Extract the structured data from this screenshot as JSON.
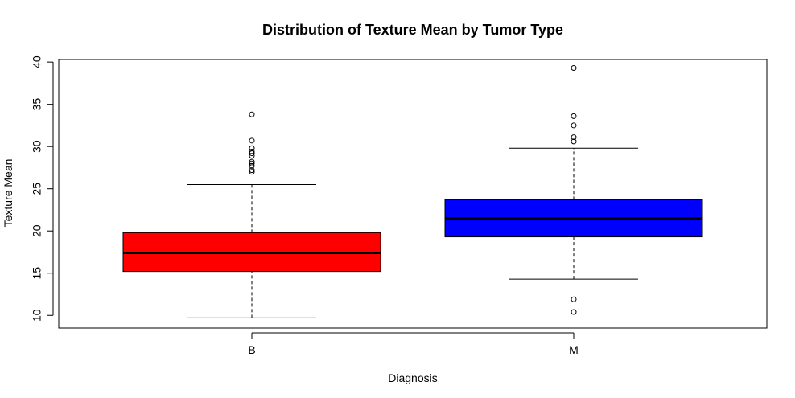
{
  "chart_data": {
    "type": "box",
    "title": "Distribution of Texture Mean by Tumor Type",
    "xlabel": "Diagnosis",
    "ylabel": "Texture Mean",
    "ylim": [
      8.5,
      40.3
    ],
    "yticks": [
      10,
      15,
      20,
      25,
      30,
      35,
      40
    ],
    "categories": [
      "B",
      "M"
    ],
    "boxes": [
      {
        "category": "B",
        "color": "#ff0000",
        "whisker_low": 9.7,
        "q1": 15.2,
        "median": 17.4,
        "q3": 19.8,
        "whisker_high": 25.5,
        "outliers": [
          27.0,
          27.2,
          27.7,
          28.0,
          28.2,
          28.9,
          29.2,
          29.4,
          29.8,
          30.7,
          33.8
        ]
      },
      {
        "category": "M",
        "color": "#0000ff",
        "whisker_low": 14.3,
        "q1": 19.3,
        "median": 21.5,
        "q3": 23.7,
        "whisker_high": 29.8,
        "outliers": [
          10.4,
          11.9,
          30.6,
          31.1,
          32.5,
          33.6,
          39.3
        ]
      }
    ],
    "grid": false,
    "legend": "none"
  }
}
